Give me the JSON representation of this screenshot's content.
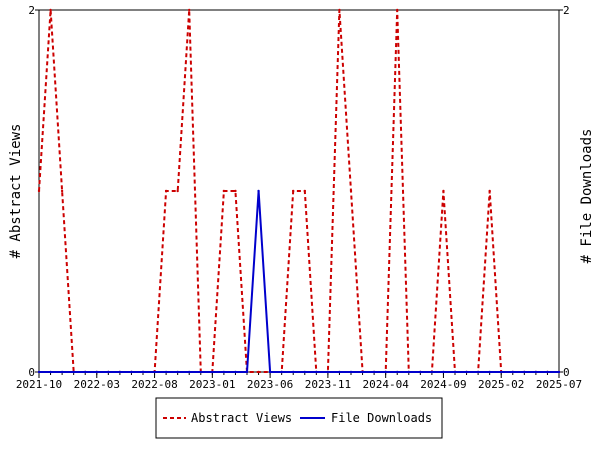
{
  "chart_data": {
    "type": "line",
    "xlabel": "",
    "ylabel_left": "# Abstract Views",
    "ylabel_right": "# File Downloads",
    "x_tick_labels": [
      "2021-10",
      "2022-03",
      "2022-08",
      "2023-01",
      "2023-06",
      "2023-11",
      "2024-04",
      "2024-09",
      "2025-02",
      "2025-07"
    ],
    "ylim_left": [
      0,
      2
    ],
    "ylim_right": [
      0,
      2
    ],
    "y_tick_labels_left": [
      "0",
      "2"
    ],
    "y_tick_labels_right": [
      "0",
      "2"
    ],
    "grid": false,
    "legend_position": "bottom-center",
    "series": [
      {
        "name": "Abstract Views",
        "axis": "left",
        "color": "#cc0000",
        "style": "dashed",
        "points": [
          [
            "2021-10",
            1
          ],
          [
            "2021-11",
            2
          ],
          [
            "2021-12",
            1
          ],
          [
            "2022-01",
            0
          ],
          [
            "2022-02",
            0
          ],
          [
            "2022-03",
            0
          ],
          [
            "2022-04",
            0
          ],
          [
            "2022-05",
            0
          ],
          [
            "2022-06",
            0
          ],
          [
            "2022-07",
            0
          ],
          [
            "2022-08",
            0
          ],
          [
            "2022-09",
            1
          ],
          [
            "2022-10",
            1
          ],
          [
            "2022-11",
            2
          ],
          [
            "2022-12",
            0
          ],
          [
            "2023-01",
            0
          ],
          [
            "2023-02",
            1
          ],
          [
            "2023-03",
            1
          ],
          [
            "2023-04",
            0
          ],
          [
            "2023-05",
            0
          ],
          [
            "2023-06",
            0
          ],
          [
            "2023-07",
            0
          ],
          [
            "2023-08",
            1
          ],
          [
            "2023-09",
            1
          ],
          [
            "2023-10",
            0
          ],
          [
            "2023-11",
            0
          ],
          [
            "2023-12",
            2
          ],
          [
            "2024-01",
            1
          ],
          [
            "2024-02",
            0
          ],
          [
            "2024-03",
            0
          ],
          [
            "2024-04",
            0
          ],
          [
            "2024-05",
            2
          ],
          [
            "2024-06",
            0
          ],
          [
            "2024-07",
            0
          ],
          [
            "2024-08",
            0
          ],
          [
            "2024-09",
            1
          ],
          [
            "2024-10",
            0
          ],
          [
            "2024-11",
            0
          ],
          [
            "2024-12",
            0
          ],
          [
            "2025-01",
            1
          ],
          [
            "2025-02",
            0
          ],
          [
            "2025-03",
            0
          ],
          [
            "2025-04",
            0
          ],
          [
            "2025-05",
            0
          ],
          [
            "2025-06",
            0
          ],
          [
            "2025-07",
            0
          ]
        ]
      },
      {
        "name": "File Downloads",
        "axis": "right",
        "color": "#0000cc",
        "style": "solid",
        "points": [
          [
            "2021-10",
            0
          ],
          [
            "2021-11",
            0
          ],
          [
            "2021-12",
            0
          ],
          [
            "2022-01",
            0
          ],
          [
            "2022-02",
            0
          ],
          [
            "2022-03",
            0
          ],
          [
            "2022-04",
            0
          ],
          [
            "2022-05",
            0
          ],
          [
            "2022-06",
            0
          ],
          [
            "2022-07",
            0
          ],
          [
            "2022-08",
            0
          ],
          [
            "2022-09",
            0
          ],
          [
            "2022-10",
            0
          ],
          [
            "2022-11",
            0
          ],
          [
            "2022-12",
            0
          ],
          [
            "2023-01",
            0
          ],
          [
            "2023-02",
            0
          ],
          [
            "2023-03",
            0
          ],
          [
            "2023-04",
            0
          ],
          [
            "2023-05",
            1
          ],
          [
            "2023-06",
            0
          ],
          [
            "2023-07",
            0
          ],
          [
            "2023-08",
            0
          ],
          [
            "2023-09",
            0
          ],
          [
            "2023-10",
            0
          ],
          [
            "2023-11",
            0
          ],
          [
            "2023-12",
            0
          ],
          [
            "2024-01",
            0
          ],
          [
            "2024-02",
            0
          ],
          [
            "2024-03",
            0
          ],
          [
            "2024-04",
            0
          ],
          [
            "2024-05",
            0
          ],
          [
            "2024-06",
            0
          ],
          [
            "2024-07",
            0
          ],
          [
            "2024-08",
            0
          ],
          [
            "2024-09",
            0
          ],
          [
            "2024-10",
            0
          ],
          [
            "2024-11",
            0
          ],
          [
            "2024-12",
            0
          ],
          [
            "2025-01",
            0
          ],
          [
            "2025-02",
            0
          ],
          [
            "2025-03",
            0
          ],
          [
            "2025-04",
            0
          ],
          [
            "2025-05",
            0
          ],
          [
            "2025-06",
            0
          ],
          [
            "2025-07",
            0
          ]
        ]
      }
    ]
  }
}
